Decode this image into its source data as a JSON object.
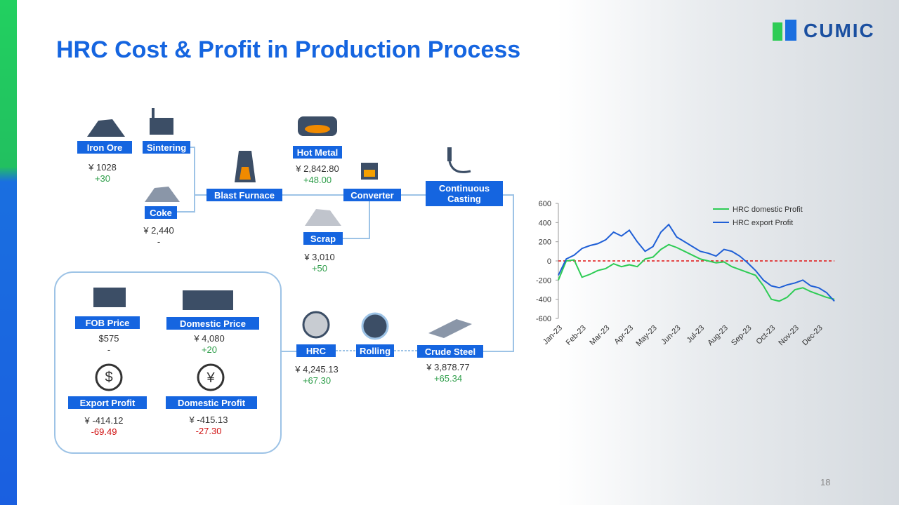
{
  "header": {
    "title": "HRC Cost & Profit in Production Process",
    "logo": "CUMIC",
    "page_number": "18"
  },
  "nodes": [
    {
      "label": "Iron Ore",
      "price": "¥ 1028",
      "change": "+30",
      "change_color": "#2e9e4a"
    },
    {
      "label": "Sintering"
    },
    {
      "label": "Coke",
      "price": "¥ 2,440",
      "change": "-",
      "change_color": "#333333"
    },
    {
      "label": "Blast Furnace"
    },
    {
      "label": "Hot Metal",
      "price": "¥ 2,842.80",
      "change": "+48.00",
      "change_color": "#2e9e4a"
    },
    {
      "label": "Converter"
    },
    {
      "label": "Scrap",
      "price": "¥ 3,010",
      "change": "+50",
      "change_color": "#2e9e4a"
    },
    {
      "label": "Continuous Casting"
    },
    {
      "label": "Crude Steel",
      "price": "¥ 3,878.77",
      "change": "+65.34",
      "change_color": "#2e9e4a"
    },
    {
      "label": "Rolling"
    },
    {
      "label": "HRC",
      "price": "¥ 4,245.13",
      "change": "+67.30",
      "change_color": "#2e9e4a"
    },
    {
      "label": "FOB Price",
      "price": "$575",
      "change": "-",
      "change_color": "#333333"
    },
    {
      "label": "Domestic Price",
      "price": "¥ 4,080",
      "change": "+20",
      "change_color": "#2e9e4a"
    },
    {
      "label": "Export Profit",
      "price": "¥ -414.12",
      "change": "-69.49",
      "change_color": "#d01010"
    },
    {
      "label": "Domestic Profit",
      "price": "¥ -415.13",
      "change": "-27.30",
      "change_color": "#d01010"
    }
  ],
  "chart_data": {
    "type": "line",
    "categories": [
      "Jan-23",
      null,
      null,
      "Feb-23",
      null,
      null,
      "Mar-23",
      null,
      null,
      "Apr-23",
      null,
      null,
      "May-23",
      null,
      null,
      "Jun-23",
      null,
      null,
      "Jul-23",
      null,
      null,
      "Aug-23",
      null,
      null,
      "Sep-23",
      null,
      null,
      "Oct-23",
      null,
      null,
      "Nov-23",
      null,
      null,
      "Dec-23",
      null,
      null
    ],
    "series": [
      {
        "name": "HRC domestic Profit",
        "color": "#2ecc55",
        "values": [
          -200,
          0,
          10,
          -170,
          -140,
          -100,
          -80,
          -30,
          -60,
          -40,
          -60,
          20,
          40,
          120,
          170,
          140,
          100,
          60,
          20,
          0,
          -20,
          -10,
          -60,
          -90,
          -120,
          -150,
          -260,
          -400,
          -420,
          -380,
          -300,
          -280,
          -320,
          -350,
          -380,
          -400
        ]
      },
      {
        "name": "HRC export Profit",
        "color": "#1f5fd6",
        "values": [
          -150,
          20,
          60,
          130,
          160,
          180,
          220,
          300,
          260,
          320,
          200,
          100,
          150,
          300,
          380,
          250,
          200,
          150,
          100,
          80,
          50,
          120,
          100,
          50,
          -20,
          -100,
          -200,
          -260,
          -280,
          -250,
          -230,
          -200,
          -260,
          -280,
          -330,
          -420
        ]
      }
    ],
    "ylim": [
      -600,
      600
    ],
    "yticks": [
      -600,
      -400,
      -200,
      0,
      200,
      400,
      600
    ],
    "reference_line": {
      "value": 0,
      "color": "#e01010"
    },
    "legend": "top-right"
  }
}
